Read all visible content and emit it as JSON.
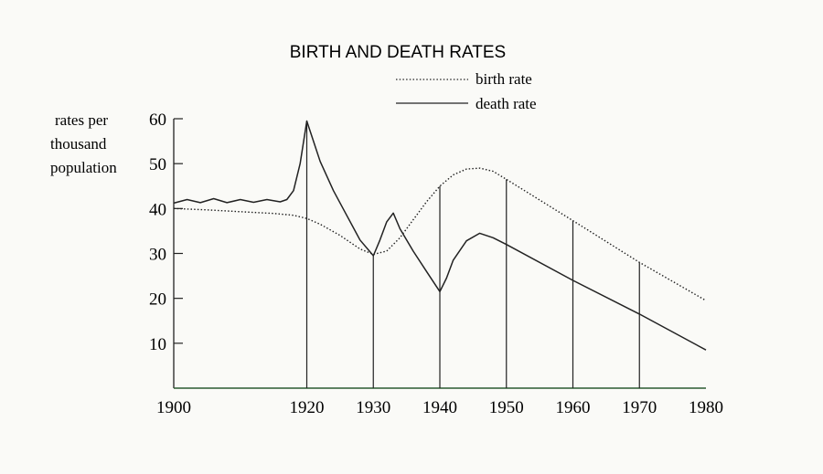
{
  "chart_data": {
    "type": "line",
    "title": "BIRTH AND DEATH RATES",
    "ylabel_lines": [
      "rates per",
      "thousand",
      "population"
    ],
    "xlabel": "",
    "xlim": [
      1900,
      1980
    ],
    "ylim": [
      0,
      60
    ],
    "x_ticks": [
      1900,
      1920,
      1930,
      1940,
      1950,
      1960,
      1970,
      1980
    ],
    "y_ticks": [
      10,
      20,
      30,
      40,
      50,
      60
    ],
    "vertical_markers": [
      1920,
      1930,
      1940,
      1950,
      1960,
      1970
    ],
    "legend": {
      "placement": "top-right"
    },
    "grid": false,
    "series": [
      {
        "name": "birth rate",
        "style": "dotted",
        "x": [
          1900,
          1905,
          1910,
          1915,
          1918,
          1920,
          1922,
          1925,
          1928,
          1930,
          1932,
          1934,
          1936,
          1938,
          1940,
          1942,
          1944,
          1946,
          1948,
          1950,
          1960,
          1970,
          1980
        ],
        "y": [
          40,
          39.7,
          39.3,
          38.9,
          38.5,
          37.8,
          36.5,
          34.0,
          31.0,
          29.8,
          30.5,
          33.5,
          37.5,
          41.5,
          45.0,
          47.5,
          48.8,
          49.0,
          48.3,
          46.5,
          37.3,
          28.0,
          19.5
        ]
      },
      {
        "name": "death rate",
        "style": "solid",
        "x": [
          1900,
          1902,
          1904,
          1906,
          1908,
          1910,
          1912,
          1914,
          1916,
          1917,
          1918,
          1919,
          1920,
          1921,
          1922,
          1924,
          1926,
          1928,
          1930,
          1931,
          1932,
          1933,
          1934,
          1936,
          1938,
          1940,
          1941,
          1942,
          1944,
          1946,
          1948,
          1950,
          1960,
          1970,
          1980
        ],
        "y": [
          41.2,
          42.0,
          41.3,
          42.2,
          41.3,
          42.0,
          41.4,
          42.0,
          41.5,
          42.0,
          44.0,
          50.0,
          59.5,
          55.0,
          50.5,
          44.0,
          38.5,
          33.0,
          29.5,
          33.0,
          37.0,
          39.0,
          35.5,
          30.5,
          26.0,
          21.5,
          24.5,
          28.5,
          32.8,
          34.5,
          33.5,
          32.0,
          24.0,
          16.5,
          8.5
        ]
      }
    ]
  }
}
